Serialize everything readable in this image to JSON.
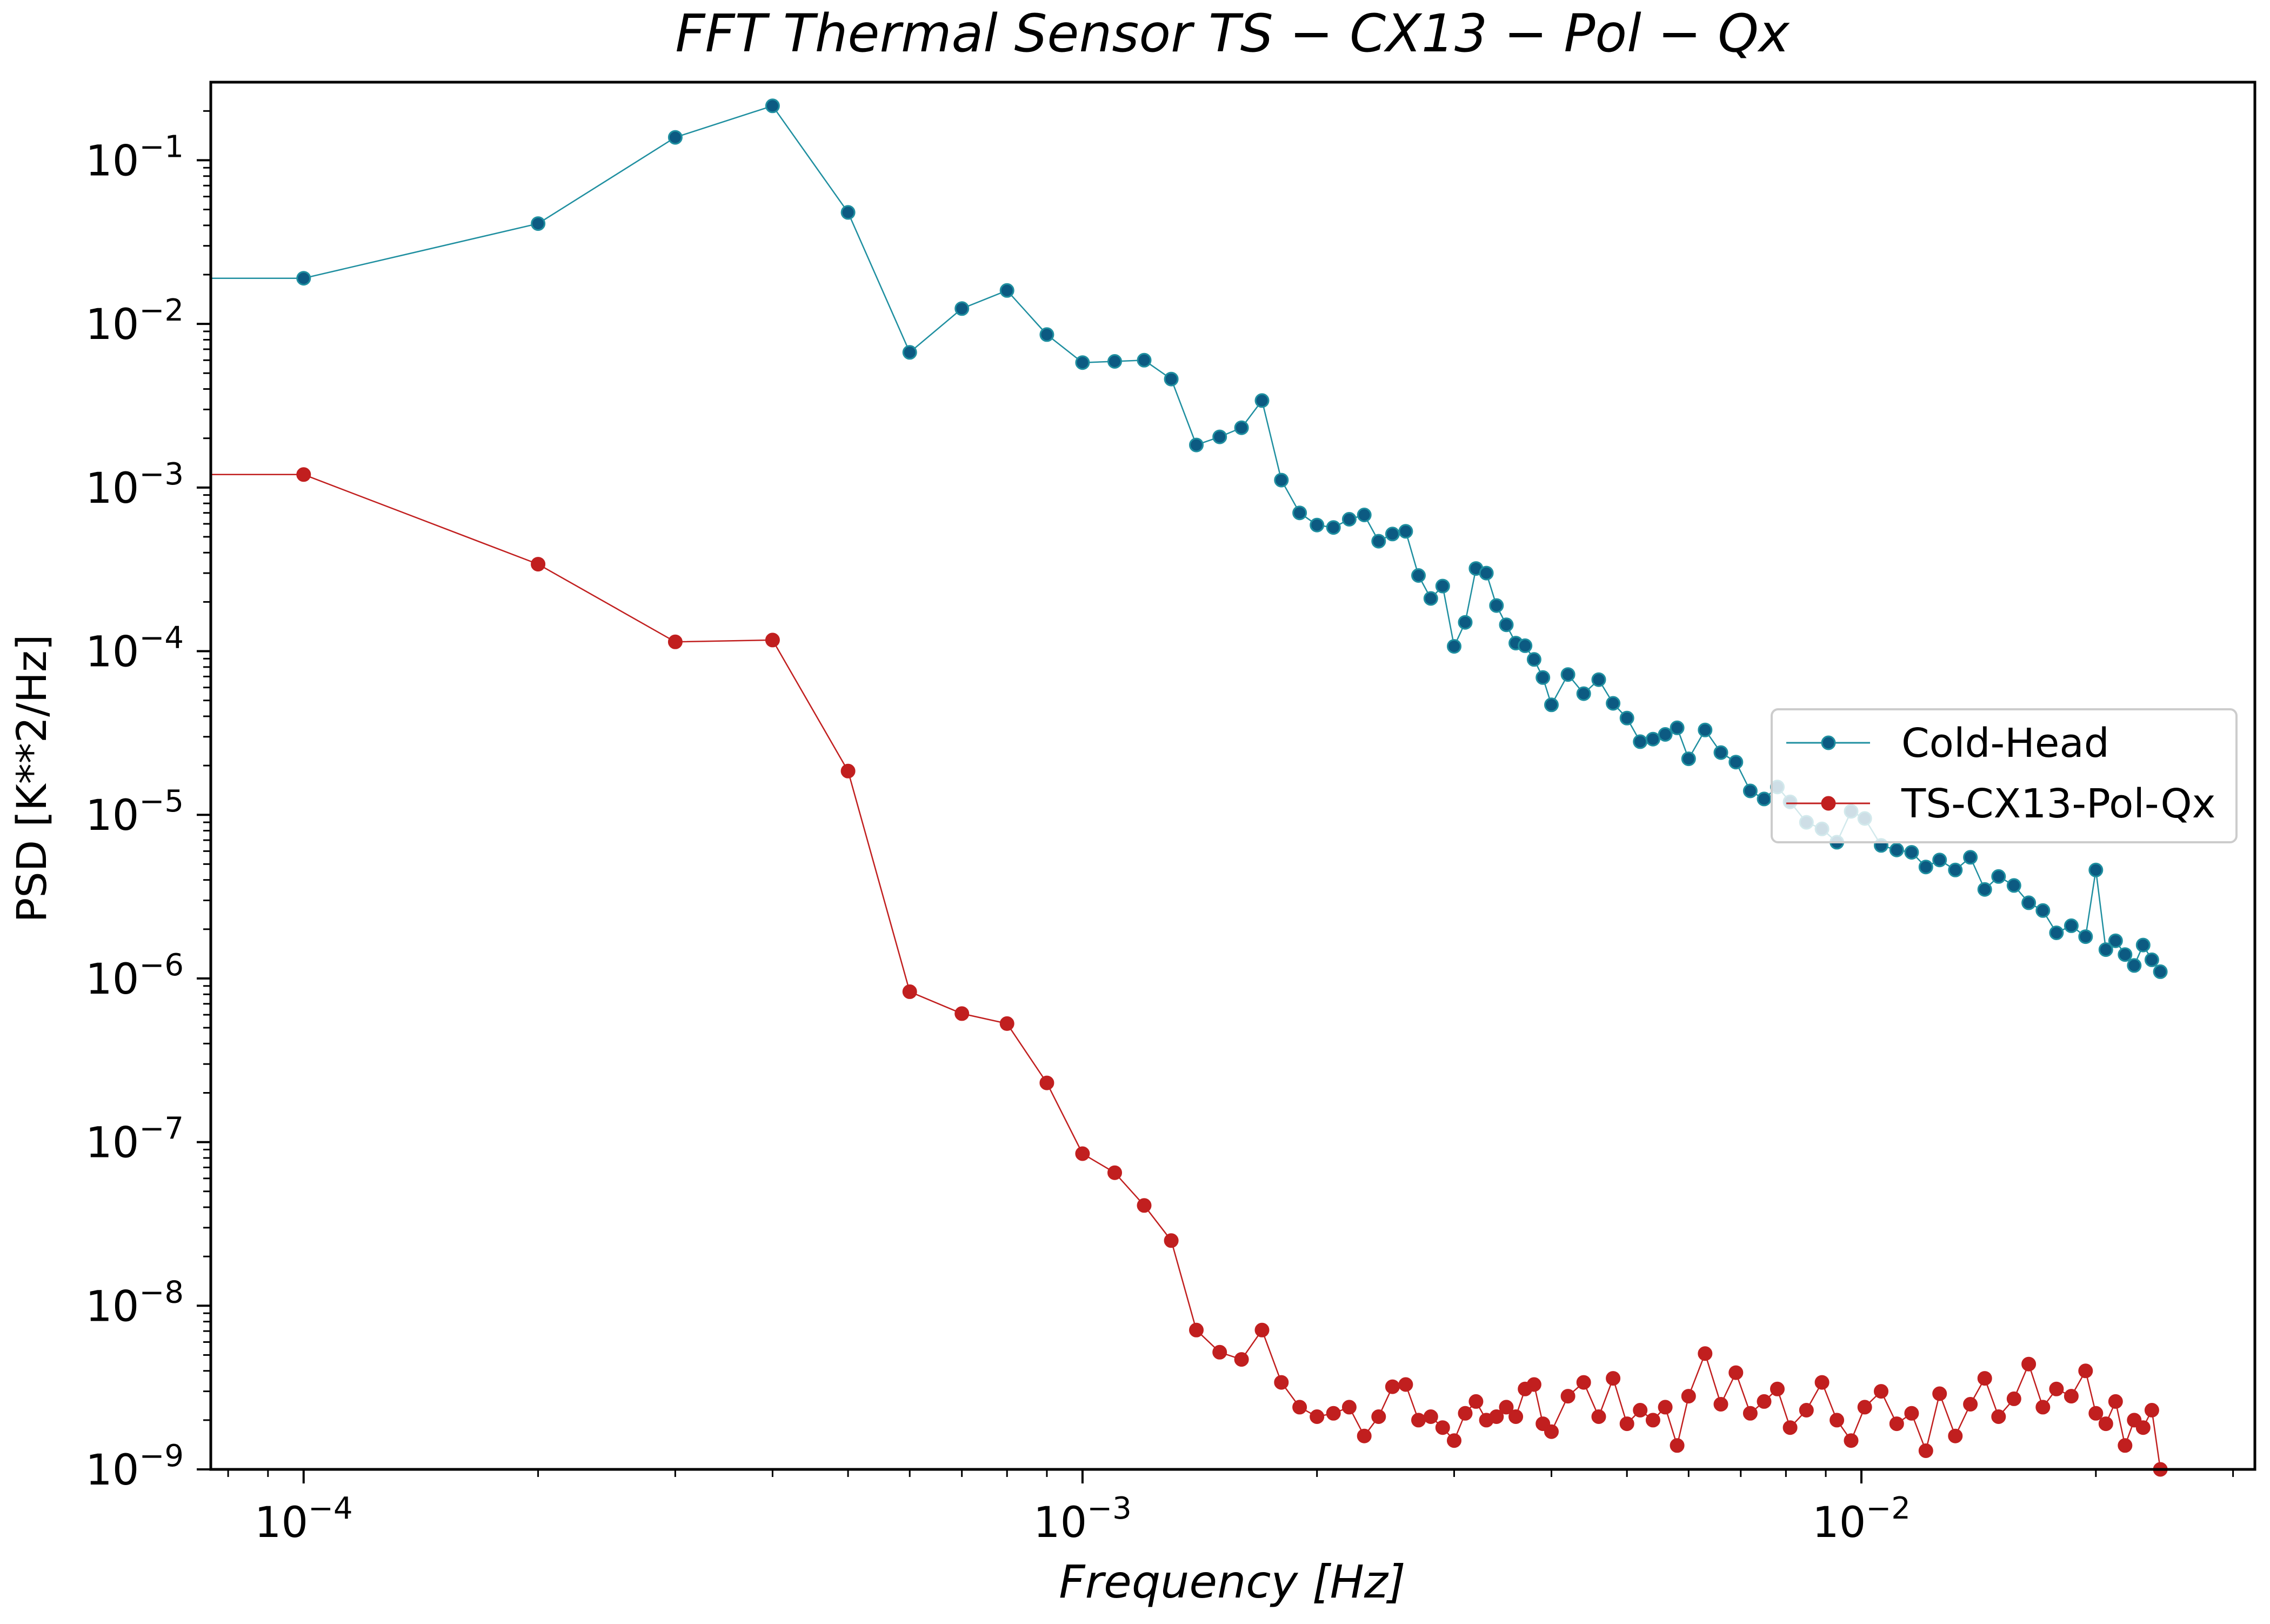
{
  "chart_data": {
    "type": "line",
    "title": "FFT Thermal Sensor TS − CX13 − Pol − Qx",
    "xlabel": "Frequency [Hz]",
    "ylabel": "PSD [K**2/Hz]",
    "xscale": "log",
    "yscale": "log",
    "xlim": [
      7.6e-05,
      0.032
    ],
    "ylim": [
      1e-09,
      0.3
    ],
    "grid": false,
    "legend_position": "center-right",
    "x_ticks": [
      {
        "value": 0.0001,
        "base": "10",
        "exp": "−4"
      },
      {
        "value": 0.001,
        "base": "10",
        "exp": "−3"
      },
      {
        "value": 0.01,
        "base": "10",
        "exp": "−2"
      }
    ],
    "y_ticks": [
      {
        "value": 0.1,
        "base": "10",
        "exp": "−1"
      },
      {
        "value": 0.01,
        "base": "10",
        "exp": "−2"
      },
      {
        "value": 0.001,
        "base": "10",
        "exp": "−3"
      },
      {
        "value": 0.0001,
        "base": "10",
        "exp": "−4"
      },
      {
        "value": 1e-05,
        "base": "10",
        "exp": "−5"
      },
      {
        "value": 1e-06,
        "base": "10",
        "exp": "−6"
      },
      {
        "value": 1e-07,
        "base": "10",
        "exp": "−7"
      },
      {
        "value": 1e-08,
        "base": "10",
        "exp": "−8"
      },
      {
        "value": 1e-09,
        "base": "10",
        "exp": "−9"
      }
    ],
    "series": [
      {
        "name": "Cold-Head",
        "color": "#1f8fa0",
        "marker_color": "#0c5a82",
        "x": [
          7.6e-05,
          0.0001,
          0.0002,
          0.0003,
          0.0004,
          0.0005,
          0.0006,
          0.0007,
          0.0008,
          0.0009,
          0.001,
          0.0011,
          0.0012,
          0.0013,
          0.0014,
          0.0015,
          0.0016,
          0.0017,
          0.0018,
          0.0019,
          0.002,
          0.0021,
          0.0022,
          0.0023,
          0.0024,
          0.0025,
          0.0026,
          0.0027,
          0.0028,
          0.0029,
          0.003,
          0.0031,
          0.0032,
          0.0033,
          0.0034,
          0.0035,
          0.0036,
          0.0037,
          0.0038,
          0.0039,
          0.004,
          0.0042,
          0.0044,
          0.0046,
          0.0048,
          0.005,
          0.0052,
          0.0054,
          0.0056,
          0.0058,
          0.006,
          0.0063,
          0.0066,
          0.0069,
          0.0072,
          0.0075,
          0.0078,
          0.0081,
          0.0085,
          0.0089,
          0.0093,
          0.0097,
          0.0101,
          0.0106,
          0.0111,
          0.0116,
          0.0121,
          0.0126,
          0.0132,
          0.0138,
          0.0144,
          0.015,
          0.0157,
          0.0164,
          0.0171,
          0.0178,
          0.0186,
          0.0194,
          0.02,
          0.0206,
          0.0212,
          0.0218,
          0.0224,
          0.023,
          0.0236,
          0.0242
        ],
        "y": [
          0.019,
          0.019,
          0.041,
          0.138,
          0.215,
          0.048,
          0.0067,
          0.0124,
          0.016,
          0.0086,
          0.0058,
          0.0059,
          0.006,
          0.0046,
          0.00182,
          0.00204,
          0.00232,
          0.0034,
          0.00111,
          0.0007,
          0.00059,
          0.00057,
          0.00064,
          0.00068,
          0.00047,
          0.00052,
          0.00054,
          0.00029,
          0.00021,
          0.00025,
          0.000107,
          0.00015,
          0.00032,
          0.0003,
          0.00019,
          0.000145,
          0.000112,
          0.000108,
          8.9e-05,
          6.9e-05,
          4.7e-05,
          7.2e-05,
          5.5e-05,
          6.7e-05,
          4.8e-05,
          3.9e-05,
          2.8e-05,
          2.9e-05,
          3.1e-05,
          3.4e-05,
          2.2e-05,
          3.3e-05,
          2.4e-05,
          2.1e-05,
          1.4e-05,
          1.25e-05,
          1.48e-05,
          1.2e-05,
          9e-06,
          8.2e-06,
          6.8e-06,
          1.05e-05,
          9.5e-06,
          6.5e-06,
          6.1e-06,
          5.9e-06,
          4.8e-06,
          5.3e-06,
          4.6e-06,
          5.5e-06,
          3.5e-06,
          4.2e-06,
          3.7e-06,
          2.9e-06,
          2.6e-06,
          1.9e-06,
          2.1e-06,
          1.8e-06,
          4.6e-06,
          1.5e-06,
          1.7e-06,
          1.4e-06,
          1.2e-06,
          1.6e-06,
          1.3e-06,
          1.1e-06
        ]
      },
      {
        "name": "TS-CX13-Pol-Qx",
        "color": "#c11f1f",
        "marker_color": "#c11f1f",
        "x": [
          7.6e-05,
          0.0001,
          0.0002,
          0.0003,
          0.0004,
          0.0005,
          0.0006,
          0.0007,
          0.0008,
          0.0009,
          0.001,
          0.0011,
          0.0012,
          0.0013,
          0.0014,
          0.0015,
          0.0016,
          0.0017,
          0.0018,
          0.0019,
          0.002,
          0.0021,
          0.0022,
          0.0023,
          0.0024,
          0.0025,
          0.0026,
          0.0027,
          0.0028,
          0.0029,
          0.003,
          0.0031,
          0.0032,
          0.0033,
          0.0034,
          0.0035,
          0.0036,
          0.0037,
          0.0038,
          0.0039,
          0.004,
          0.0042,
          0.0044,
          0.0046,
          0.0048,
          0.005,
          0.0052,
          0.0054,
          0.0056,
          0.0058,
          0.006,
          0.0063,
          0.0066,
          0.0069,
          0.0072,
          0.0075,
          0.0078,
          0.0081,
          0.0085,
          0.0089,
          0.0093,
          0.0097,
          0.0101,
          0.0106,
          0.0111,
          0.0116,
          0.0121,
          0.0126,
          0.0132,
          0.0138,
          0.0144,
          0.015,
          0.0157,
          0.0164,
          0.0171,
          0.0178,
          0.0186,
          0.0194,
          0.02,
          0.0206,
          0.0212,
          0.0218,
          0.0224,
          0.023,
          0.0236,
          0.0242
        ],
        "y": [
          0.0012,
          0.0012,
          0.00034,
          0.000114,
          0.000117,
          1.85e-05,
          8.3e-07,
          6.1e-07,
          5.3e-07,
          2.3e-07,
          8.5e-08,
          6.5e-08,
          4.1e-08,
          2.5e-08,
          7.1e-09,
          5.2e-09,
          4.7e-09,
          7.1e-09,
          3.4e-09,
          2.4e-09,
          2.1e-09,
          2.2e-09,
          2.4e-09,
          1.6e-09,
          2.1e-09,
          3.2e-09,
          3.3e-09,
          2e-09,
          2.1e-09,
          1.8e-09,
          1.5e-09,
          2.2e-09,
          2.6e-09,
          2e-09,
          2.1e-09,
          2.4e-09,
          2.1e-09,
          3.1e-09,
          3.3e-09,
          1.9e-09,
          1.7e-09,
          2.8e-09,
          3.4e-09,
          2.1e-09,
          3.6e-09,
          1.9e-09,
          2.3e-09,
          2e-09,
          2.4e-09,
          1.4e-09,
          2.8e-09,
          5.1e-09,
          2.5e-09,
          3.9e-09,
          2.2e-09,
          2.6e-09,
          3.1e-09,
          1.8e-09,
          2.3e-09,
          3.4e-09,
          2e-09,
          1.5e-09,
          2.4e-09,
          3e-09,
          1.9e-09,
          2.2e-09,
          1.3e-09,
          2.9e-09,
          1.6e-09,
          2.5e-09,
          3.6e-09,
          2.1e-09,
          2.7e-09,
          4.4e-09,
          2.4e-09,
          3.1e-09,
          2.8e-09,
          4e-09,
          2.2e-09,
          1.9e-09,
          2.6e-09,
          1.4e-09,
          2e-09,
          1.8e-09,
          2.3e-09,
          1e-09
        ]
      }
    ]
  }
}
